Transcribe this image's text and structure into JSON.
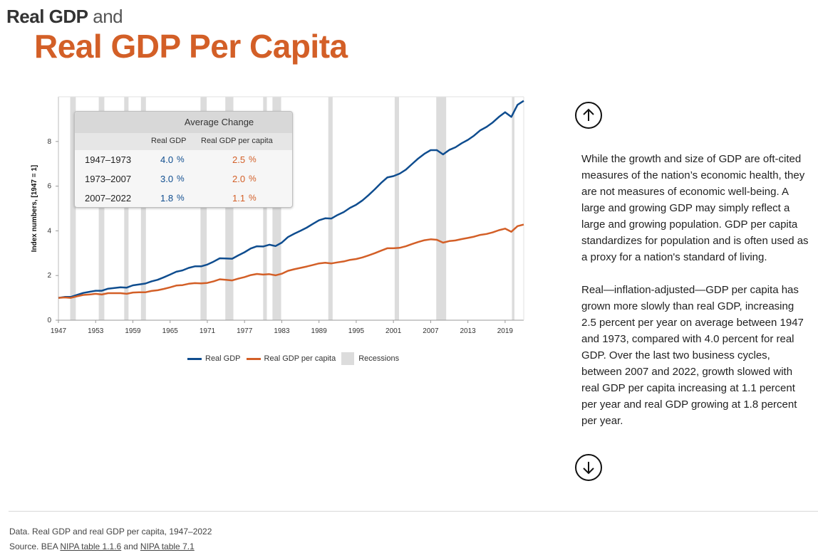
{
  "title": {
    "part1": "Real GDP",
    "part2": "and",
    "main": "Real GDP Per Capita"
  },
  "colors": {
    "real_gdp": "#0f4d8f",
    "real_gdp_per_capita": "#d35f27",
    "recession": "#dcdcdc"
  },
  "table": {
    "title": "Average Change",
    "col1": "Real GDP",
    "col2": "Real GDP per capita",
    "rows": [
      {
        "period": "1947–1973",
        "gdp": "4.0",
        "pc": "2.5"
      },
      {
        "period": "1973–2007",
        "gdp": "3.0",
        "pc": "2.0"
      },
      {
        "period": "2007–2022",
        "gdp": "1.8",
        "pc": "1.1"
      }
    ],
    "pct": "%"
  },
  "chart_data": {
    "type": "line",
    "ylabel": "Index numbers, [1947 = 1]",
    "xlim": [
      1947,
      2022
    ],
    "ylim": [
      0,
      10
    ],
    "x_ticks": [
      1947,
      1953,
      1959,
      1965,
      1971,
      1977,
      1983,
      1989,
      1995,
      2001,
      2007,
      2013,
      2019
    ],
    "y_ticks": [
      0,
      2,
      4,
      6,
      8
    ],
    "grid": false,
    "legend": "bottom",
    "legend_entries": [
      "Real GDP",
      "Real GDP per capita",
      "Recessions"
    ],
    "recessions": [
      [
        1948.9,
        1949.8
      ],
      [
        1953.5,
        1954.4
      ],
      [
        1957.6,
        1958.3
      ],
      [
        1960.3,
        1961.1
      ],
      [
        1969.9,
        1970.9
      ],
      [
        1973.9,
        1975.2
      ],
      [
        1980.0,
        1980.6
      ],
      [
        1981.5,
        1982.9
      ],
      [
        1990.5,
        1991.2
      ],
      [
        2001.2,
        2001.9
      ],
      [
        2007.9,
        2009.5
      ],
      [
        2020.1,
        2020.5
      ]
    ],
    "x": [
      1947,
      1948,
      1949,
      1950,
      1951,
      1952,
      1953,
      1954,
      1955,
      1956,
      1957,
      1958,
      1959,
      1960,
      1961,
      1962,
      1963,
      1964,
      1965,
      1966,
      1967,
      1968,
      1969,
      1970,
      1971,
      1972,
      1973,
      1974,
      1975,
      1976,
      1977,
      1978,
      1979,
      1980,
      1981,
      1982,
      1983,
      1984,
      1985,
      1986,
      1987,
      1988,
      1989,
      1990,
      1991,
      1992,
      1993,
      1994,
      1995,
      1996,
      1997,
      1998,
      1999,
      2000,
      2001,
      2002,
      2003,
      2004,
      2005,
      2006,
      2007,
      2008,
      2009,
      2010,
      2011,
      2012,
      2013,
      2014,
      2015,
      2016,
      2017,
      2018,
      2019,
      2020,
      2021,
      2022
    ],
    "series": [
      {
        "name": "Real GDP",
        "values": [
          1.0,
          1.04,
          1.04,
          1.13,
          1.22,
          1.27,
          1.32,
          1.32,
          1.41,
          1.44,
          1.47,
          1.46,
          1.56,
          1.6,
          1.64,
          1.74,
          1.81,
          1.92,
          2.04,
          2.17,
          2.23,
          2.34,
          2.41,
          2.41,
          2.49,
          2.62,
          2.77,
          2.76,
          2.75,
          2.9,
          3.04,
          3.21,
          3.31,
          3.3,
          3.38,
          3.32,
          3.47,
          3.72,
          3.87,
          4.0,
          4.14,
          4.31,
          4.47,
          4.56,
          4.55,
          4.71,
          4.84,
          5.03,
          5.17,
          5.36,
          5.6,
          5.86,
          6.14,
          6.39,
          6.45,
          6.56,
          6.74,
          6.99,
          7.24,
          7.45,
          7.61,
          7.61,
          7.42,
          7.62,
          7.74,
          7.92,
          8.07,
          8.26,
          8.5,
          8.65,
          8.85,
          9.1,
          9.31,
          9.1,
          9.64,
          9.82
        ]
      },
      {
        "name": "Real GDP per capita",
        "values": [
          1.0,
          1.02,
          1.0,
          1.07,
          1.13,
          1.15,
          1.18,
          1.15,
          1.21,
          1.21,
          1.21,
          1.18,
          1.24,
          1.25,
          1.25,
          1.31,
          1.34,
          1.4,
          1.47,
          1.55,
          1.57,
          1.63,
          1.66,
          1.65,
          1.67,
          1.74,
          1.83,
          1.81,
          1.78,
          1.86,
          1.93,
          2.02,
          2.07,
          2.04,
          2.06,
          2.01,
          2.08,
          2.21,
          2.28,
          2.34,
          2.4,
          2.47,
          2.54,
          2.57,
          2.54,
          2.59,
          2.63,
          2.7,
          2.74,
          2.81,
          2.9,
          3.0,
          3.11,
          3.22,
          3.22,
          3.24,
          3.31,
          3.41,
          3.5,
          3.58,
          3.62,
          3.6,
          3.47,
          3.54,
          3.57,
          3.63,
          3.68,
          3.74,
          3.82,
          3.86,
          3.93,
          4.03,
          4.1,
          3.96,
          4.21,
          4.28
        ]
      }
    ]
  },
  "side": {
    "p1": "While the growth and size of GDP are oft-cited measures of the nation’s economic health, they are not measures of economic well-being. A large and growing GDP may simply reflect a large and growing population. GDP per capita standardizes for population and is often used as a proxy for a nation's standard of living.",
    "p2": "Real—inflation-adjusted—GDP per capita has grown more slowly than real GDP, increasing 2.5 percent per year on average between 1947 and 1973, compared with 4.0 percent for real GDP. Over the last two business cycles, between 2007 and 2022, growth slowed with real GDP per capita increasing at 1.1 percent per year and real GDP growing at 1.8 percent per year."
  },
  "nav": {
    "up_icon": "arrow-up-icon",
    "down_icon": "arrow-down-icon"
  },
  "footer": {
    "data_line": "Data. Real GDP and real GDP per capita, 1947–2022",
    "source_prefix": "Source. BEA ",
    "link1": "NIPA table 1.1.6",
    "and": " and ",
    "link2": "NIPA table 7.1"
  }
}
